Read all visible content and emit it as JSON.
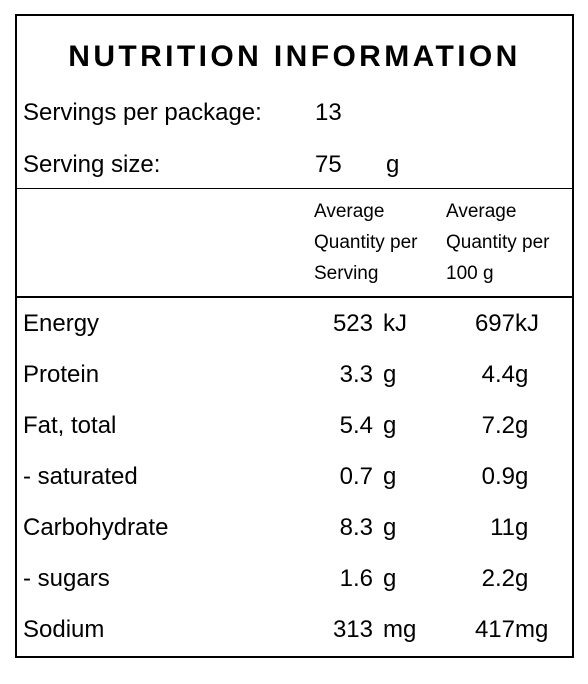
{
  "title": "NUTRITION INFORMATION",
  "servings": {
    "label": "Servings per package:",
    "value": "13"
  },
  "serving_size": {
    "label": "Serving size:",
    "value": "75",
    "unit": "g"
  },
  "columns": {
    "per_serving": [
      "Average",
      "Quantity per",
      "Serving"
    ],
    "per_100g": [
      "Average",
      "Quantity per",
      "100 g"
    ]
  },
  "nutrients": [
    {
      "name": "Energy",
      "serving": "523",
      "serving_unit": "kJ",
      "per100": "697",
      "per100_unit": "kJ"
    },
    {
      "name": "Protein",
      "serving": "3.3",
      "serving_unit": "g",
      "per100": "4.4",
      "per100_unit": "g"
    },
    {
      "name": "Fat, total",
      "serving": "5.4",
      "serving_unit": "g",
      "per100": "7.2",
      "per100_unit": "g"
    },
    {
      "name": "- saturated",
      "serving": "0.7",
      "serving_unit": "g",
      "per100": "0.9",
      "per100_unit": "g"
    },
    {
      "name": "Carbohydrate",
      "serving": "8.3",
      "serving_unit": "g",
      "per100": "11",
      "per100_unit": "g"
    },
    {
      "name": "- sugars",
      "serving": "1.6",
      "serving_unit": "g",
      "per100": "2.2",
      "per100_unit": "g"
    },
    {
      "name": "Sodium",
      "serving": "313",
      "serving_unit": "mg",
      "per100": "417",
      "per100_unit": "mg"
    }
  ]
}
